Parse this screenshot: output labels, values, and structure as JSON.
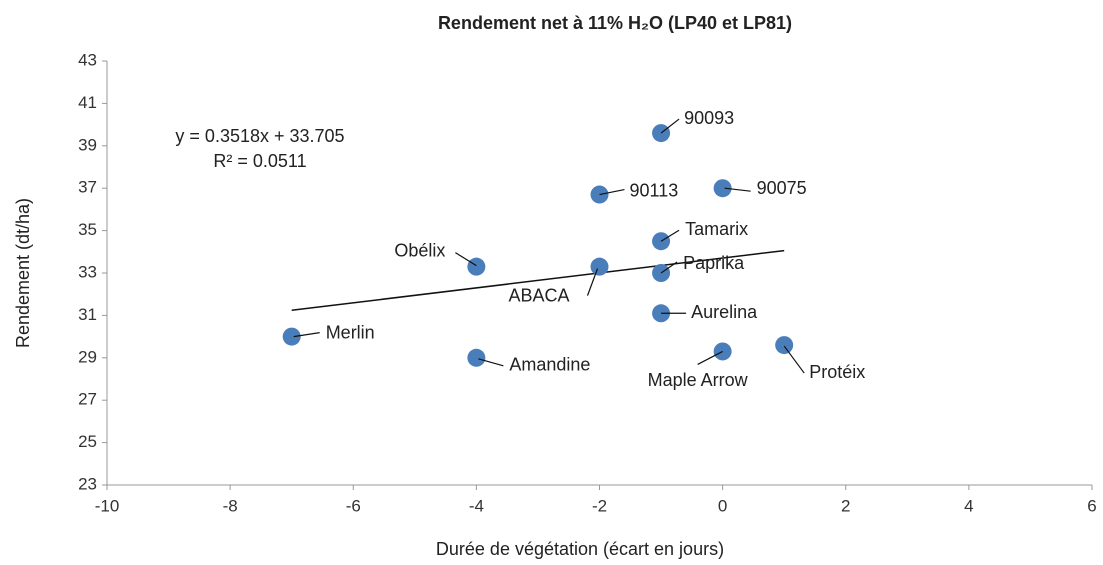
{
  "chart_data": {
    "type": "scatter",
    "title": "Rendement net à 11% H₂O (LP40 et LP81)",
    "x_label": "Durée de végétation (écart en jours)",
    "y_label": "Rendement (dt/ha)",
    "annotations": [
      "y = 0.3518x + 33.705",
      "R² = 0.0511"
    ],
    "trendline": {
      "slope": 0.3518,
      "intercept": 33.705
    },
    "series": [
      {
        "name": "Rendement",
        "color": "#4a7ebb",
        "labels": [
          "Merlin",
          "Amandine",
          "Obélix",
          "ABACA",
          "90113",
          "90093",
          "Tamarix",
          "Paprika",
          "Aurelina",
          "90075",
          "Maple Arrow",
          "Protéix"
        ],
        "x": [
          -7,
          -4,
          -4,
          -2,
          -2,
          -1,
          -1,
          -1,
          -1,
          0,
          0,
          1
        ],
        "values": [
          30.0,
          29.0,
          33.3,
          33.3,
          36.7,
          39.6,
          34.5,
          33.0,
          31.1,
          37.0,
          29.3,
          29.6
        ]
      }
    ],
    "xlim": [
      -10,
      6
    ],
    "xticks": [
      -10,
      -8,
      -6,
      -4,
      -2,
      0,
      2,
      4,
      6
    ],
    "ylim": [
      23,
      43
    ],
    "yticks": [
      23,
      25,
      27,
      29,
      31,
      33,
      35,
      37,
      39,
      41,
      43
    ],
    "grid": false
  }
}
